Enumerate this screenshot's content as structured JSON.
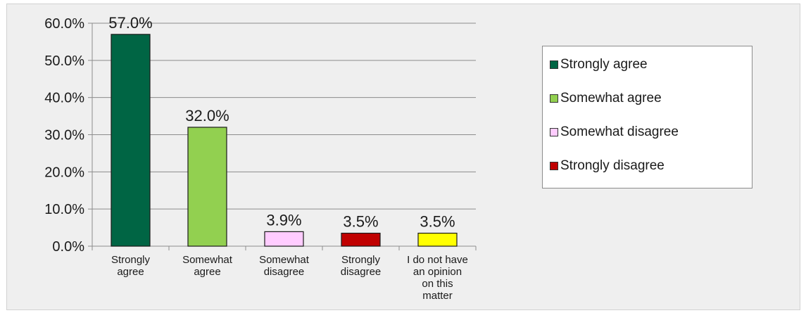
{
  "chart_data": {
    "type": "bar",
    "title": "",
    "xlabel": "",
    "ylabel": "",
    "categories": [
      [
        "Strongly",
        "agree"
      ],
      [
        "Somewhat",
        "agree"
      ],
      [
        "Somewhat",
        "disagree"
      ],
      [
        "Strongly",
        "disagree"
      ],
      [
        "I do not have",
        "an opinion",
        "on this",
        "matter"
      ]
    ],
    "values": [
      57.0,
      32.0,
      3.9,
      3.5,
      3.5
    ],
    "value_labels": [
      "57.0%",
      "32.0%",
      "3.9%",
      "3.5%",
      "3.5%"
    ],
    "bar_colors": [
      "#006544",
      "#92d050",
      "#ffccff",
      "#c00000",
      "#ffff00"
    ],
    "ylim": [
      0,
      60
    ],
    "y_ticks": [
      0,
      10,
      20,
      30,
      40,
      50,
      60
    ],
    "y_tick_labels": [
      "0.0%",
      "10.0%",
      "20.0%",
      "30.0%",
      "40.0%",
      "50.0%",
      "60.0%"
    ],
    "grid": true,
    "legend": {
      "placement": "right",
      "entries": [
        {
          "label": "Strongly agree",
          "color": "#006544"
        },
        {
          "label": "Somewhat agree",
          "color": "#92d050"
        },
        {
          "label": "Somewhat disagree",
          "color": "#ffccff"
        },
        {
          "label": "Strongly disagree",
          "color": "#c00000"
        }
      ]
    }
  }
}
